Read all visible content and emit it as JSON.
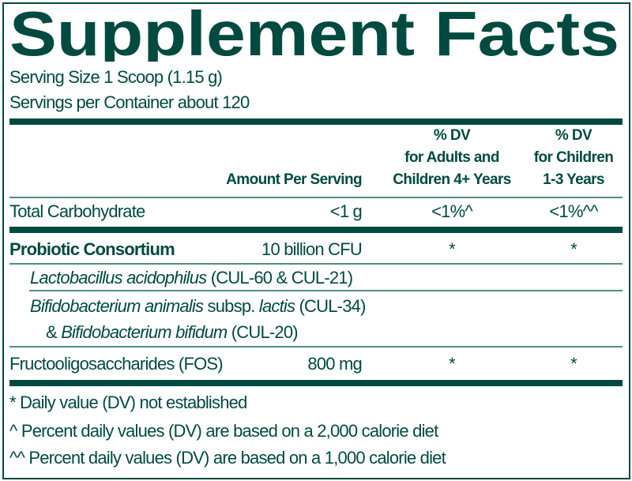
{
  "title": "Supplement Facts",
  "serving_size": "Serving Size 1 Scoop (1.15 g)",
  "servings_per_container": "Servings per Container about 120",
  "headers": {
    "amount": "Amount Per Serving",
    "dv_adults": [
      "% DV",
      "for Adults and",
      "Children 4+ Years"
    ],
    "dv_children": [
      "% DV",
      "for Children",
      "1-3 Years"
    ]
  },
  "rows": [
    {
      "name": "Total Carbohydrate",
      "amount": "<1 g",
      "dv_adults": "<1%^",
      "dv_children": "<1%^^"
    },
    {
      "name": "Probiotic Consortium",
      "amount": "10 billion CFU",
      "dv_adults": "*",
      "dv_children": "*"
    },
    {
      "name_italic": "Lactobacillus acidophilus",
      "name_rest": " (CUL-60 & CUL-21)"
    },
    {
      "line1": {
        "i1": "Bifidobacterium animalis",
        "n1": " subsp. ",
        "i2": "lactis",
        "n2": " (CUL-34)"
      },
      "line2": {
        "n1": "& ",
        "i1": "Bifidobacterium bifidum",
        "n2": " (CUL-20)"
      }
    },
    {
      "name": "Fructooligosaccharides (FOS)",
      "amount": "800 mg",
      "dv_adults": "*",
      "dv_children": "*"
    }
  ],
  "footnotes": [
    "* Daily value (DV) not established",
    "^ Percent daily values (DV) are based on a 2,000 calorie diet",
    "^^ Percent daily values (DV) are based on a 1,000 calorie diet"
  ],
  "colors": {
    "primary": "#004a40",
    "rule_light": "#4f8f85"
  }
}
